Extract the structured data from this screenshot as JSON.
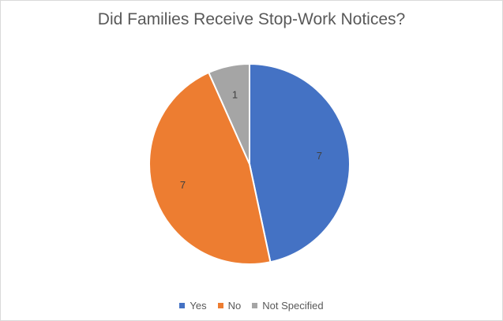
{
  "chart_data": {
    "type": "pie",
    "title": "Did Families Receive Stop-Work Notices?",
    "categories": [
      "Yes",
      "No",
      "Not Specified"
    ],
    "values": [
      7,
      7,
      1
    ],
    "data_labels": [
      "7",
      "7",
      "1"
    ],
    "colors": [
      "#4472c4",
      "#ed7d31",
      "#a5a5a5"
    ],
    "legend_placement": "bottom"
  }
}
